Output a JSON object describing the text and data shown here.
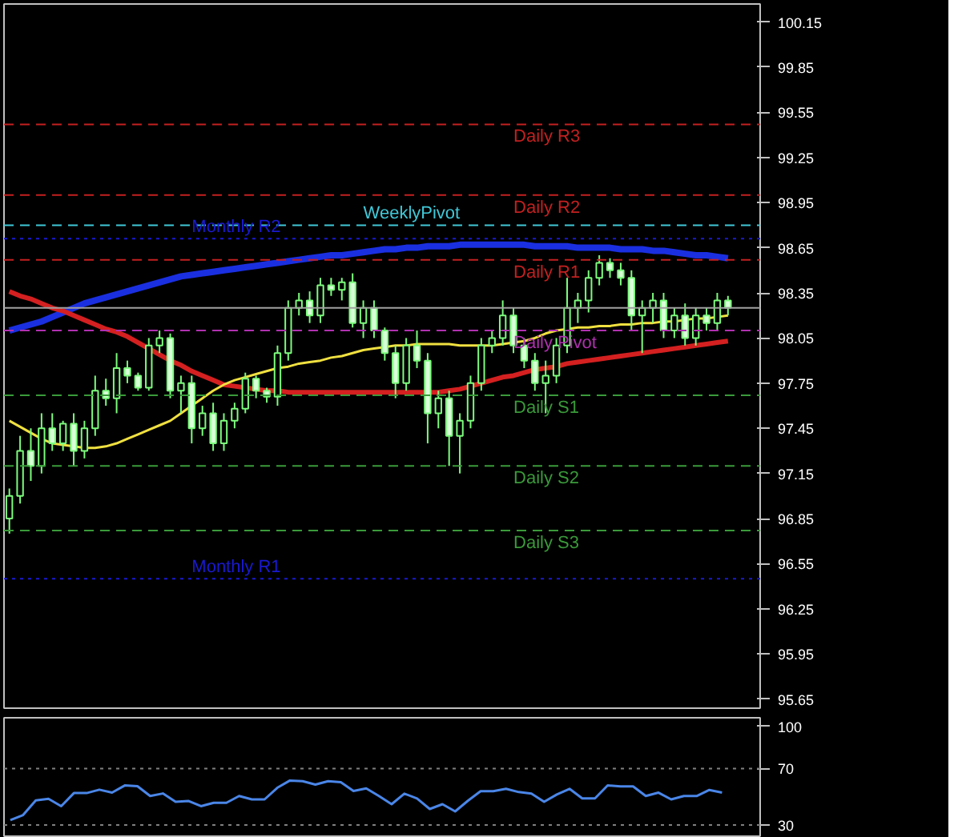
{
  "chart_data": [
    {
      "type": "candlestick",
      "categories": [
        null,
        null,
        null,
        null,
        null,
        null,
        null,
        null,
        null,
        null,
        null,
        null,
        null,
        null,
        null,
        null,
        null,
        null,
        null,
        null,
        null,
        null,
        null,
        null,
        null,
        null,
        null,
        null,
        null,
        null,
        null,
        null,
        null,
        null,
        null,
        null,
        null,
        null,
        null,
        null,
        null,
        null,
        null,
        null,
        null,
        null,
        null,
        null,
        null,
        null,
        null,
        null,
        null,
        null,
        null,
        null,
        null,
        null,
        null,
        null,
        null,
        null,
        null,
        null,
        null,
        null,
        null,
        null
      ],
      "ohlc": [
        [
          96.85,
          97.05,
          96.75,
          97.0
        ],
        [
          97.0,
          97.4,
          96.95,
          97.3
        ],
        [
          97.3,
          97.45,
          97.1,
          97.2
        ],
        [
          97.2,
          97.55,
          97.15,
          97.45
        ],
        [
          97.45,
          97.55,
          97.3,
          97.35
        ],
        [
          97.35,
          97.5,
          97.3,
          97.48
        ],
        [
          97.48,
          97.55,
          97.2,
          97.3
        ],
        [
          97.3,
          97.5,
          97.25,
          97.45
        ],
        [
          97.45,
          97.8,
          97.4,
          97.7
        ],
        [
          97.7,
          97.78,
          97.6,
          97.65
        ],
        [
          97.65,
          97.95,
          97.55,
          97.85
        ],
        [
          97.85,
          97.9,
          97.75,
          97.8
        ],
        [
          97.8,
          97.82,
          97.7,
          97.72
        ],
        [
          97.72,
          98.05,
          97.7,
          98.0
        ],
        [
          98.0,
          98.1,
          97.95,
          98.05
        ],
        [
          98.05,
          98.08,
          97.65,
          97.7
        ],
        [
          97.7,
          97.8,
          97.55,
          97.75
        ],
        [
          97.75,
          97.8,
          97.35,
          97.45
        ],
        [
          97.45,
          97.6,
          97.4,
          97.55
        ],
        [
          97.55,
          97.62,
          97.3,
          97.35
        ],
        [
          97.35,
          97.55,
          97.3,
          97.5
        ],
        [
          97.5,
          97.62,
          97.45,
          97.58
        ],
        [
          97.58,
          97.82,
          97.55,
          97.78
        ],
        [
          97.78,
          97.8,
          97.65,
          97.7
        ],
        [
          97.7,
          97.72,
          97.62,
          97.66
        ],
        [
          97.66,
          98.0,
          97.6,
          97.95
        ],
        [
          97.95,
          98.3,
          97.9,
          98.25
        ],
        [
          98.25,
          98.35,
          98.2,
          98.3
        ],
        [
          98.3,
          98.36,
          98.15,
          98.2
        ],
        [
          98.2,
          98.45,
          98.15,
          98.4
        ],
        [
          98.4,
          98.45,
          98.33,
          98.37
        ],
        [
          98.37,
          98.45,
          98.3,
          98.42
        ],
        [
          98.42,
          98.48,
          98.12,
          98.15
        ],
        [
          98.15,
          98.3,
          98.05,
          98.25
        ],
        [
          98.25,
          98.3,
          98.05,
          98.1
        ],
        [
          98.1,
          98.12,
          97.9,
          97.95
        ],
        [
          97.95,
          98.0,
          97.65,
          97.75
        ],
        [
          97.75,
          98.05,
          97.7,
          98.0
        ],
        [
          98.0,
          98.1,
          97.85,
          97.9
        ],
        [
          97.9,
          97.95,
          97.35,
          97.55
        ],
        [
          97.55,
          97.7,
          97.45,
          97.65
        ],
        [
          97.65,
          97.7,
          97.2,
          97.4
        ],
        [
          97.4,
          97.55,
          97.15,
          97.5
        ],
        [
          97.5,
          97.8,
          97.45,
          97.75
        ],
        [
          97.75,
          98.05,
          97.7,
          98.0
        ],
        [
          98.0,
          98.1,
          97.95,
          98.05
        ],
        [
          98.05,
          98.3,
          98.0,
          98.2
        ],
        [
          98.2,
          98.25,
          97.95,
          98.0
        ],
        [
          98.0,
          98.05,
          97.85,
          97.9
        ],
        [
          97.9,
          97.95,
          97.7,
          97.75
        ],
        [
          97.75,
          97.9,
          97.55,
          97.8
        ],
        [
          97.8,
          98.05,
          97.75,
          98.0
        ],
        [
          98.0,
          98.45,
          97.95,
          98.25
        ],
        [
          98.25,
          98.35,
          98.15,
          98.3
        ],
        [
          98.3,
          98.5,
          98.22,
          98.45
        ],
        [
          98.45,
          98.6,
          98.4,
          98.55
        ],
        [
          98.55,
          98.58,
          98.45,
          98.5
        ],
        [
          98.5,
          98.55,
          98.4,
          98.45
        ],
        [
          98.45,
          98.5,
          98.1,
          98.2
        ],
        [
          98.2,
          98.3,
          97.95,
          98.25
        ],
        [
          98.25,
          98.35,
          98.15,
          98.3
        ],
        [
          98.3,
          98.35,
          98.05,
          98.1
        ],
        [
          98.1,
          98.25,
          98.05,
          98.2
        ],
        [
          98.2,
          98.28,
          98.0,
          98.05
        ],
        [
          98.05,
          98.25,
          98.0,
          98.2
        ],
        [
          98.2,
          98.25,
          98.1,
          98.15
        ],
        [
          98.15,
          98.35,
          98.1,
          98.3
        ],
        [
          98.3,
          98.33,
          98.2,
          98.25
        ]
      ],
      "color": "#7cfc7c",
      "series": [
        {
          "type": "line",
          "color": "#1a2fe0",
          "values": [
            98.1,
            98.12,
            98.14,
            98.16,
            98.19,
            98.22,
            98.25,
            98.28,
            98.3,
            98.32,
            98.34,
            98.36,
            98.38,
            98.4,
            98.42,
            98.44,
            98.46,
            98.47,
            98.48,
            98.49,
            98.5,
            98.51,
            98.52,
            98.53,
            98.54,
            98.55,
            98.56,
            98.57,
            98.58,
            98.59,
            98.6,
            98.6,
            98.61,
            98.62,
            98.63,
            98.64,
            98.64,
            98.65,
            98.65,
            98.66,
            98.66,
            98.66,
            98.67,
            98.67,
            98.67,
            98.67,
            98.67,
            98.67,
            98.67,
            98.66,
            98.66,
            98.66,
            98.66,
            98.65,
            98.65,
            98.65,
            98.65,
            98.64,
            98.64,
            98.64,
            98.63,
            98.63,
            98.62,
            98.61,
            98.6,
            98.6,
            98.59,
            98.58
          ]
        },
        {
          "type": "line",
          "color": "#d42020",
          "values": [
            98.36,
            98.33,
            98.31,
            98.28,
            98.25,
            98.23,
            98.2,
            98.17,
            98.14,
            98.11,
            98.09,
            98.06,
            98.02,
            97.98,
            97.94,
            97.9,
            97.87,
            97.83,
            97.8,
            97.77,
            97.74,
            97.73,
            97.72,
            97.71,
            97.7,
            97.7,
            97.69,
            97.69,
            97.69,
            97.69,
            97.69,
            97.69,
            97.69,
            97.69,
            97.69,
            97.69,
            97.69,
            97.69,
            97.69,
            97.69,
            97.69,
            97.7,
            97.71,
            97.73,
            97.75,
            97.77,
            97.79,
            97.8,
            97.82,
            97.84,
            97.85,
            97.86,
            97.88,
            97.89,
            97.9,
            97.91,
            97.92,
            97.93,
            97.94,
            97.95,
            97.96,
            97.97,
            97.98,
            97.99,
            98.0,
            98.01,
            98.02,
            98.03
          ]
        },
        {
          "type": "line",
          "color": "#f0e040",
          "values": [
            97.5,
            97.46,
            97.42,
            97.38,
            97.35,
            97.34,
            97.33,
            97.32,
            97.32,
            97.33,
            97.35,
            97.38,
            97.41,
            97.44,
            97.47,
            97.5,
            97.55,
            97.6,
            97.65,
            97.7,
            97.74,
            97.77,
            97.79,
            97.81,
            97.83,
            97.85,
            97.86,
            97.88,
            97.89,
            97.9,
            97.92,
            97.93,
            97.95,
            97.97,
            97.98,
            97.99,
            98.0,
            98.0,
            98.01,
            98.01,
            98.01,
            98.01,
            98.0,
            98.0,
            98.0,
            98.0,
            98.01,
            98.02,
            98.03,
            98.05,
            98.08,
            98.1,
            98.11,
            98.12,
            98.12,
            98.13,
            98.13,
            98.14,
            98.14,
            98.15,
            98.15,
            98.16,
            98.16,
            98.17,
            98.18,
            98.18,
            98.19,
            98.2
          ]
        }
      ],
      "ylim": [
        95.59,
        100.27
      ],
      "yticks": [
        100.15,
        99.85,
        99.55,
        99.25,
        98.95,
        98.65,
        98.35,
        98.05,
        97.75,
        97.45,
        97.15,
        96.85,
        96.55,
        96.25,
        95.95,
        95.65
      ],
      "ref_lines": [
        {
          "axis": "y",
          "value": 99.47,
          "label": "Daily R3",
          "color": "#c42020",
          "line_style": "dashed"
        },
        {
          "axis": "y",
          "value": 99.0,
          "label": "Daily R2",
          "color": "#c42020",
          "line_style": "dashed"
        },
        {
          "axis": "y",
          "value": 98.8,
          "label": "WeeklyPivot",
          "color": "#40c8d8",
          "line_style": "dashed"
        },
        {
          "axis": "y",
          "value": 98.71,
          "label": "Monthly R2",
          "color": "#1a1ad0",
          "line_style": "dotted"
        },
        {
          "axis": "y",
          "value": 98.57,
          "label": "Daily R1",
          "color": "#c42020",
          "line_style": "dashed"
        },
        {
          "axis": "y",
          "value": 98.25,
          "color": "#a0a0a0",
          "line_style": "solid"
        },
        {
          "axis": "y",
          "value": 98.1,
          "label": "Daily Pivot",
          "color": "#b030b0",
          "line_style": "dashed"
        },
        {
          "axis": "y",
          "value": 97.67,
          "label": "Daily S1",
          "color": "#3a9a3a",
          "line_style": "dashed"
        },
        {
          "axis": "y",
          "value": 97.2,
          "label": "Daily S2",
          "color": "#3a9a3a",
          "line_style": "dashed"
        },
        {
          "axis": "y",
          "value": 96.77,
          "label": "Daily S3",
          "color": "#3a9a3a",
          "line_style": "dashed"
        },
        {
          "axis": "y",
          "value": 96.45,
          "label": "Monthly R1",
          "color": "#1a1ad0",
          "line_style": "dotted"
        }
      ],
      "grid": false,
      "tick_labels": "y"
    },
    {
      "type": "line",
      "categories": [
        null,
        null,
        null,
        null,
        null,
        null,
        null,
        null,
        null,
        null,
        null,
        null,
        null,
        null,
        null,
        null,
        null,
        null,
        null,
        null,
        null,
        null,
        null,
        null,
        null,
        null,
        null,
        null,
        null,
        null,
        null,
        null,
        null,
        null,
        null,
        null,
        null,
        null,
        null,
        null,
        null,
        null,
        null,
        null,
        null,
        null,
        null,
        null,
        null,
        null,
        null,
        null,
        null,
        null,
        null,
        null,
        null
      ],
      "series": [
        {
          "color": "#4a86e8",
          "values": [
            33.4,
            37,
            47.4,
            48.5,
            43.3,
            52.6,
            52.6,
            55,
            52.9,
            58,
            57.5,
            50.5,
            52.3,
            46.4,
            47,
            43.3,
            45.7,
            45.7,
            50.5,
            48.1,
            48.1,
            56.3,
            61.5,
            61,
            58.6,
            61,
            60.3,
            54.1,
            55.9,
            50.5,
            44.7,
            52.2,
            48.8,
            41.3,
            44.7,
            39.6,
            47.1,
            53.9,
            53.9,
            55.6,
            53.3,
            52.2,
            46.4,
            51.6,
            55.6,
            48.8,
            48.8,
            58,
            57.3,
            57.3,
            50.5,
            52.9,
            48.1,
            50.5,
            50.5,
            54.8,
            52.9
          ]
        }
      ],
      "ylim": [
        22,
        106
      ],
      "yticks": [
        100,
        70,
        30
      ],
      "ref_lines": [
        {
          "axis": "y",
          "value": 70,
          "color": "#808080",
          "line_style": "dotted"
        },
        {
          "axis": "y",
          "value": 30,
          "color": "#808080",
          "line_style": "dotted"
        }
      ],
      "grid": false,
      "tick_labels": "y"
    }
  ]
}
